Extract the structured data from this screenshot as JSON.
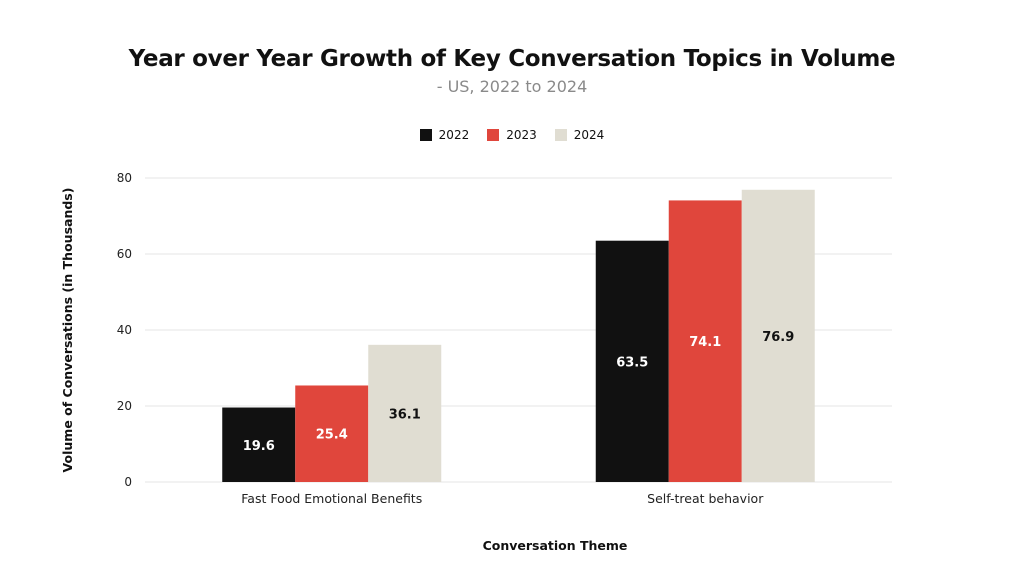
{
  "chart_data": {
    "type": "bar",
    "title": "Year over Year Growth of Key Conversation Topics in Volume",
    "subtitle": "- US, 2022 to 2024",
    "xlabel": "Conversation Theme",
    "ylabel": "Volume of Conversations (in Thousands)",
    "categories": [
      "Fast Food Emotional Benefits",
      "Self-treat behavior"
    ],
    "series": [
      {
        "name": "2022",
        "values": [
          19.6,
          63.5
        ],
        "color": "#111111",
        "label_color": "#ffffff",
        "labels": [
          "19.6",
          "63.5"
        ]
      },
      {
        "name": "2023",
        "values": [
          25.4,
          74.1
        ],
        "color": "#e0463c",
        "label_color": "#ffffff",
        "labels": [
          "25.4",
          "74.1"
        ]
      },
      {
        "name": "2024",
        "values": [
          36.1,
          76.9
        ],
        "color": "#e0ddd2",
        "label_color": "#111111",
        "labels": [
          "36.1",
          "76.9"
        ]
      }
    ],
    "ylim": [
      0,
      80
    ],
    "yticks": [
      0,
      20,
      40,
      60,
      80
    ],
    "ytick_labels": [
      "0",
      "20",
      "40",
      "60",
      "80"
    ],
    "grid": true,
    "legend_position": "top-center"
  }
}
